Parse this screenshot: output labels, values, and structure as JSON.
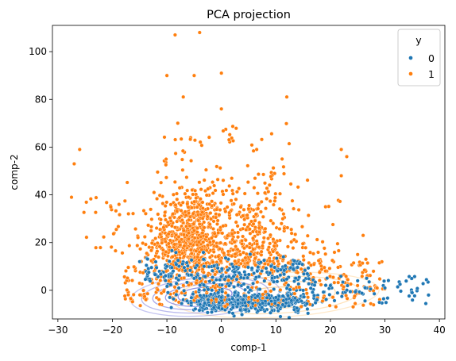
{
  "chart_data": {
    "type": "scatter",
    "title": "PCA projection",
    "xlabel": "comp-1",
    "ylabel": "comp-2",
    "xlim": [
      -31,
      41
    ],
    "ylim": [
      -12,
      111
    ],
    "xticks": [
      -30,
      -20,
      -10,
      0,
      10,
      20,
      30,
      40
    ],
    "yticks": [
      0,
      20,
      40,
      60,
      80,
      100
    ],
    "grid": false,
    "legend": {
      "title": "y",
      "placement": "top-right",
      "entries": [
        {
          "label": "0",
          "color": "#1f77b4"
        },
        {
          "label": "1",
          "color": "#ff7f0e"
        }
      ]
    },
    "series": [
      {
        "name": "0",
        "color": "#1f77b4",
        "n_points": 800,
        "description_points": [
          [
            -15,
            12
          ],
          [
            -10,
            10
          ],
          [
            -5,
            5
          ],
          [
            0,
            -3
          ],
          [
            5,
            -5
          ],
          [
            10,
            -3
          ],
          [
            15,
            0
          ],
          [
            20,
            2
          ],
          [
            25,
            4
          ],
          [
            30,
            1
          ],
          [
            35,
            -1
          ],
          [
            38,
            -2
          ]
        ]
      },
      {
        "name": "1",
        "color": "#ff7f0e",
        "n_points": 1500,
        "description_points": [
          [
            -27.5,
            39
          ],
          [
            -27,
            53
          ],
          [
            -26,
            59
          ],
          [
            -10,
            90
          ],
          [
            -8.5,
            107
          ],
          [
            -4,
            108
          ],
          [
            -5,
            90
          ],
          [
            0,
            91
          ],
          [
            0,
            76
          ],
          [
            12,
            81
          ],
          [
            -7,
            81
          ],
          [
            -8,
            70
          ],
          [
            22,
            59
          ],
          [
            23,
            56
          ],
          [
            22,
            48
          ],
          [
            26,
            23
          ],
          [
            25,
            15
          ],
          [
            -5,
            25
          ],
          [
            -5,
            10
          ],
          [
            0,
            5
          ],
          [
            5,
            -3
          ],
          [
            20,
            2
          ]
        ]
      }
    ],
    "kde_contours": [
      {
        "group": "0",
        "color": "#5a5ad6"
      },
      {
        "group": "1",
        "color": "#ffc87a"
      }
    ]
  }
}
